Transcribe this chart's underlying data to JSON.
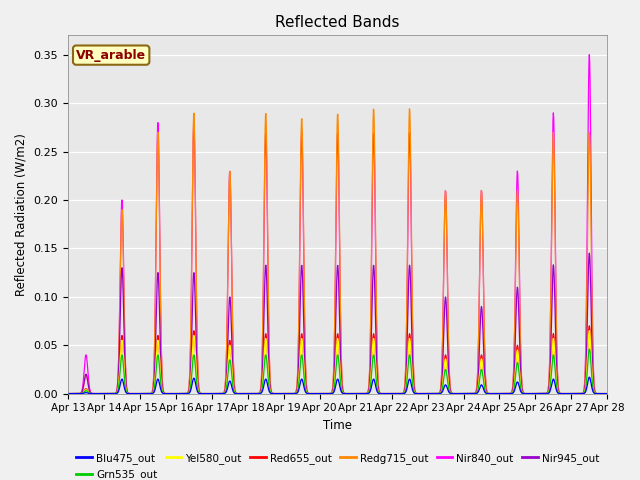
{
  "title": "Reflected Bands",
  "xlabel": "Time",
  "ylabel": "Reflected Radiation (W/m2)",
  "ylim": [
    0,
    0.37
  ],
  "yticks": [
    0.0,
    0.05,
    0.1,
    0.15,
    0.2,
    0.25,
    0.3,
    0.35
  ],
  "date_start": 13,
  "date_end": 28,
  "series": [
    {
      "name": "Blu475_out",
      "color": "#0000FF"
    },
    {
      "name": "Grn535_out",
      "color": "#00CC00"
    },
    {
      "name": "Yel580_out",
      "color": "#FFFF00"
    },
    {
      "name": "Red655_out",
      "color": "#FF0000"
    },
    {
      "name": "Redg715_out",
      "color": "#FF8800"
    },
    {
      "name": "Nir840_out",
      "color": "#FF00FF"
    },
    {
      "name": "Nir945_out",
      "color": "#9900CC"
    }
  ],
  "annotation_label": "VR_arable",
  "fig_facecolor": "#F0F0F0",
  "ax_facecolor": "#E8E8E8",
  "nir840_peaks": [
    0.04,
    0.2,
    0.28,
    0.28,
    0.23,
    0.27,
    0.27,
    0.27,
    0.27,
    0.27,
    0.21,
    0.21,
    0.23,
    0.29,
    0.35
  ],
  "redg715_peaks": [
    0.02,
    0.19,
    0.27,
    0.29,
    0.23,
    0.29,
    0.285,
    0.29,
    0.295,
    0.295,
    0.21,
    0.21,
    0.21,
    0.27,
    0.27
  ],
  "nir945_peaks": [
    0.02,
    0.13,
    0.125,
    0.125,
    0.1,
    0.133,
    0.133,
    0.133,
    0.133,
    0.133,
    0.1,
    0.09,
    0.11,
    0.133,
    0.145
  ],
  "red655_peaks": [
    0.005,
    0.06,
    0.06,
    0.065,
    0.055,
    0.062,
    0.062,
    0.062,
    0.062,
    0.062,
    0.04,
    0.04,
    0.05,
    0.062,
    0.07
  ],
  "yel580_peaks": [
    0.004,
    0.055,
    0.055,
    0.06,
    0.05,
    0.057,
    0.057,
    0.057,
    0.057,
    0.057,
    0.036,
    0.036,
    0.045,
    0.057,
    0.065
  ],
  "grn535_peaks": [
    0.003,
    0.04,
    0.04,
    0.04,
    0.035,
    0.04,
    0.04,
    0.04,
    0.04,
    0.04,
    0.025,
    0.025,
    0.032,
    0.04,
    0.046
  ],
  "blu475_peaks": [
    0.001,
    0.015,
    0.015,
    0.016,
    0.013,
    0.015,
    0.015,
    0.015,
    0.015,
    0.015,
    0.009,
    0.009,
    0.012,
    0.015,
    0.017
  ]
}
